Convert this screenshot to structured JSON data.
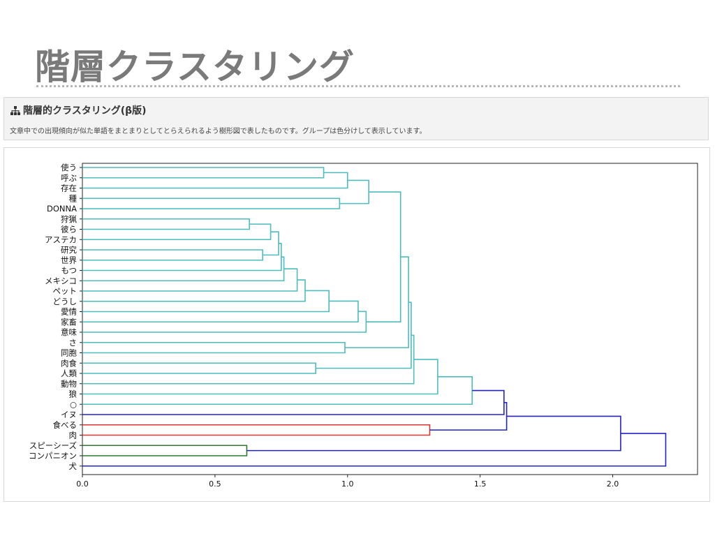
{
  "slide": {
    "title": "階層クラスタリング"
  },
  "panel": {
    "heading": "階層的クラスタリング(β版)",
    "heading_icon": "sitemap-icon",
    "description": "文章中での出現傾向が似た単語をまとまりとしてとらえられるよう樹形図で表したものです。グループは色分けして表示しています。"
  },
  "colors": {
    "teal": "#4dbcbc",
    "blue": "#2222cc",
    "red": "#dd3333",
    "green": "#2f7a2f",
    "axis": "#222222"
  },
  "chart_data": {
    "type": "dendrogram",
    "orientation": "horizontal",
    "xlim": [
      0,
      2.32
    ],
    "x_ticks": [
      "0.0",
      "0.5",
      "1.0",
      "1.5",
      "2.0"
    ],
    "leaves": [
      "使う",
      "呼ぶ",
      "存在",
      "種",
      "DONNA",
      "狩猟",
      "彼ら",
      "アステカ",
      "研究",
      "世界",
      "もつ",
      "メキシコ",
      "ペット",
      "どうし",
      "愛情",
      "家畜",
      "意味",
      "さ",
      "同胞",
      "肉食",
      "人類",
      "動物",
      "狼",
      "○",
      "イヌ",
      "食べる",
      "肉",
      "スピーシーズ",
      "コンパニオン",
      "犬"
    ],
    "merges": [
      {
        "a": "L0",
        "b": "L1",
        "h": 0.91,
        "color": "teal"
      },
      {
        "a": "M0",
        "b": "L2",
        "h": 1.0,
        "color": "teal"
      },
      {
        "a": "L3",
        "b": "L4",
        "h": 0.97,
        "color": "teal"
      },
      {
        "a": "M1",
        "b": "M2",
        "h": 1.08,
        "color": "teal"
      },
      {
        "a": "L8",
        "b": "L9",
        "h": 0.68,
        "color": "teal"
      },
      {
        "a": "L5",
        "b": "L6",
        "h": 0.63,
        "color": "teal"
      },
      {
        "a": "M5",
        "b": "L7",
        "h": 0.71,
        "color": "teal"
      },
      {
        "a": "M6",
        "b": "M4",
        "h": 0.74,
        "color": "teal"
      },
      {
        "a": "M7",
        "b": "L10",
        "h": 0.75,
        "color": "teal"
      },
      {
        "a": "M8",
        "b": "L11",
        "h": 0.76,
        "color": "teal"
      },
      {
        "a": "M9",
        "b": "L12",
        "h": 0.81,
        "color": "teal"
      },
      {
        "a": "M10",
        "b": "L13",
        "h": 0.84,
        "color": "teal"
      },
      {
        "a": "M11",
        "b": "L14",
        "h": 0.93,
        "color": "teal"
      },
      {
        "a": "M12",
        "b": "L15",
        "h": 1.04,
        "color": "teal"
      },
      {
        "a": "M13",
        "b": "L16",
        "h": 1.07,
        "color": "teal"
      },
      {
        "a": "M3",
        "b": "M14",
        "h": 1.2,
        "color": "teal"
      },
      {
        "a": "L17",
        "b": "L18",
        "h": 0.99,
        "color": "teal"
      },
      {
        "a": "M15",
        "b": "M16",
        "h": 1.23,
        "color": "teal"
      },
      {
        "a": "L19",
        "b": "L20",
        "h": 0.88,
        "color": "teal"
      },
      {
        "a": "M17",
        "b": "M18",
        "h": 1.24,
        "color": "teal"
      },
      {
        "a": "M19",
        "b": "L21",
        "h": 1.25,
        "color": "teal"
      },
      {
        "a": "M20",
        "b": "L22",
        "h": 1.34,
        "color": "teal"
      },
      {
        "a": "M21",
        "b": "L23",
        "h": 1.47,
        "color": "teal"
      },
      {
        "a": "L25",
        "b": "L26",
        "h": 1.31,
        "color": "red"
      },
      {
        "a": "M22",
        "b": "L24",
        "h": 1.59,
        "color": "blue"
      },
      {
        "a": "M24",
        "b": "M23",
        "h": 1.6,
        "color": "blue"
      },
      {
        "a": "L27",
        "b": "L28",
        "h": 0.62,
        "color": "green"
      },
      {
        "a": "M25",
        "b": "M26",
        "h": 2.03,
        "color": "blue"
      },
      {
        "a": "M27",
        "b": "L29",
        "h": 2.2,
        "color": "blue"
      }
    ]
  }
}
